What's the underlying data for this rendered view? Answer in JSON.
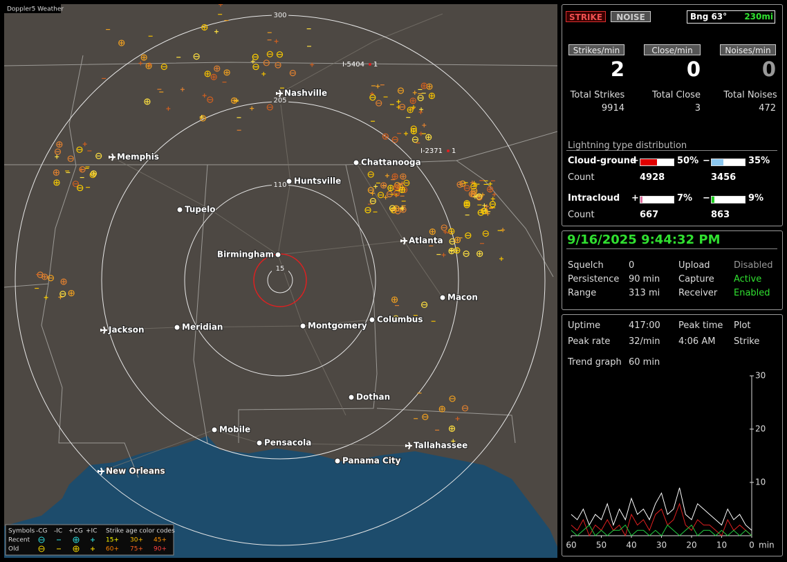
{
  "map": {
    "title": "Doppler5 Weather",
    "ring_labels": [
      "300",
      "205",
      "110",
      "15"
    ],
    "highways": [
      {
        "name": "I-5404",
        "count": "1"
      },
      {
        "name": "I-2371",
        "count": "1"
      }
    ],
    "cities": [
      "Nashville",
      "Memphis",
      "Chattanooga",
      "Huntsville",
      "Tupelo",
      "Birmingham",
      "Atlanta",
      "Macon",
      "Jackson",
      "Meridian",
      "Montgomery",
      "Columbus",
      "Dothan",
      "Mobile",
      "Pensacola",
      "Panama City",
      "Tallahassee",
      "New Orleans"
    ],
    "legend": {
      "symbols_label": "Symbols",
      "types": [
        "-CG",
        "-IC",
        "+CG",
        "+IC"
      ],
      "age_label": "Strike age color codes",
      "rows": [
        {
          "label": "Recent",
          "ages": [
            "15+",
            "30+",
            "45+"
          ]
        },
        {
          "label": "Old",
          "ages": [
            "60+",
            "75+",
            "90+"
          ]
        }
      ]
    }
  },
  "panel": {
    "mode_buttons": [
      "STRIKE",
      "NOISE"
    ],
    "bearing": "Bng 63°",
    "distance": "230mi",
    "rates": [
      {
        "label": "Strikes/min",
        "value": 2
      },
      {
        "label": "Close/min",
        "value": 0
      },
      {
        "label": "Noises/min",
        "value": 0
      }
    ],
    "totals": [
      {
        "label": "Total Strikes",
        "value": 9914
      },
      {
        "label": "Total Close",
        "value": 3
      },
      {
        "label": "Total Noises",
        "value": 472
      }
    ],
    "distribution": {
      "title": "Lightning type distribution",
      "count_label": "Count",
      "types": [
        {
          "name": "Cloud-ground",
          "items": [
            {
              "sign": "+",
              "value": 50,
              "label": "50%",
              "color": "#e00000",
              "count": 4928
            },
            {
              "sign": "−",
              "value": 35,
              "label": "35%",
              "color": "#8cc8f0",
              "count": 3456
            }
          ]
        },
        {
          "name": "Intracloud",
          "items": [
            {
              "sign": "+",
              "value": 7,
              "label": "7%",
              "color": "#e070a0",
              "count": 667
            },
            {
              "sign": "−",
              "value": 9,
              "label": "9%",
              "color": "#20d020",
              "count": 863
            }
          ]
        }
      ]
    }
  },
  "status": {
    "datetime": "9/16/2025 9:44:32 PM",
    "settings": [
      {
        "label": "Squelch",
        "value": 0
      },
      {
        "label": "Persistence",
        "value": "90 min"
      },
      {
        "label": "Range",
        "value": "313 mi"
      },
      {
        "label": "Upload",
        "value": "Disabled"
      },
      {
        "label": "Capture",
        "value": "Active"
      },
      {
        "label": "Receiver",
        "value": "Enabled"
      }
    ]
  },
  "stats": {
    "uptime": {
      "label": "Uptime",
      "value": "417:00"
    },
    "peak_rate": {
      "label": "Peak rate",
      "value": "32/min"
    },
    "peak_time": {
      "label": "Peak time",
      "value": "4:06 AM"
    },
    "plot": {
      "label": "Plot",
      "value": "Strike"
    },
    "trend": {
      "label": "Trend graph",
      "value": "60 min"
    }
  },
  "trend_graph": {
    "type": "line",
    "x_unit": "min",
    "xlim": [
      60,
      0
    ],
    "ylim": [
      0,
      30
    ],
    "xticks": [
      60,
      50,
      40,
      30,
      20,
      10,
      0
    ],
    "yticks": [
      10,
      20,
      30
    ],
    "x": [
      60,
      58,
      56,
      54,
      52,
      50,
      48,
      46,
      44,
      42,
      40,
      38,
      36,
      34,
      32,
      30,
      28,
      26,
      24,
      22,
      20,
      18,
      16,
      14,
      12,
      10,
      8,
      6,
      4,
      2,
      0
    ],
    "series": [
      {
        "color": "#ffffff",
        "values": [
          4,
          3,
          5,
          2,
          4,
          3,
          6,
          2,
          5,
          3,
          7,
          4,
          5,
          3,
          6,
          8,
          4,
          5,
          9,
          4,
          3,
          6,
          5,
          4,
          3,
          2,
          5,
          3,
          4,
          2,
          1
        ]
      },
      {
        "color": "#e02020",
        "values": [
          2,
          1,
          3,
          0,
          2,
          1,
          3,
          1,
          2,
          0,
          4,
          2,
          3,
          1,
          4,
          5,
          2,
          3,
          6,
          2,
          1,
          3,
          2,
          2,
          1,
          0,
          3,
          1,
          2,
          1,
          0
        ]
      },
      {
        "color": "#20d040",
        "values": [
          1,
          0,
          1,
          2,
          0,
          1,
          0,
          1,
          1,
          2,
          0,
          1,
          1,
          0,
          1,
          0,
          2,
          1,
          0,
          1,
          2,
          0,
          1,
          1,
          0,
          1,
          0,
          1,
          0,
          1,
          0
        ]
      }
    ]
  }
}
